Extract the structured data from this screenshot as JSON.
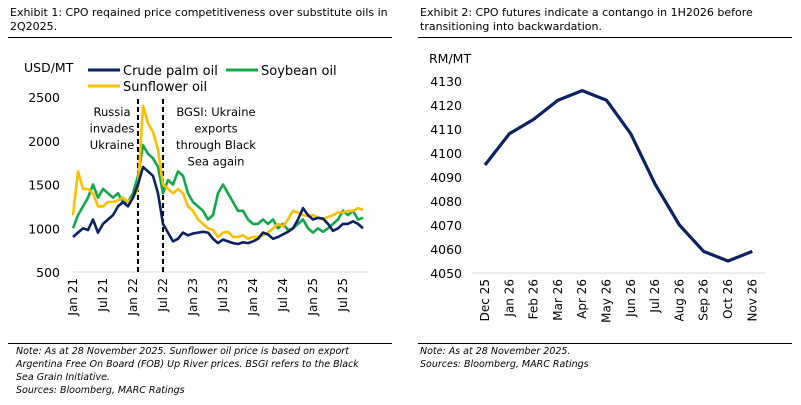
{
  "exhibit1": {
    "title": "Exhibit 1: CPO reqained price competitiveness over substitute oils in 2Q2025.",
    "notes": [
      "Note: As at 28 November 2025. Sunflower oil price is based on export",
      "Argentina Free On Board (FOB) Up River prices. BSGI refers to the Black",
      "Sea Grain Initiative.",
      "Sources: Bloomberg, MARC Ratings"
    ]
  },
  "exhibit2": {
    "title": "Exhibit 2: CPO futures indicate a contango in 1H2026 before transitioning into backwardation.",
    "notes": [
      "Note: As at 28 November 2025.",
      "Sources: Bloomberg, MARC Ratings"
    ]
  },
  "chart_data": [
    {
      "type": "line",
      "ylabel": "USD/MT",
      "ylim": [
        500,
        2500
      ],
      "yticks": [
        "500",
        "1000",
        "1500",
        "2000",
        "2500"
      ],
      "xticks": [
        "Jan 21",
        "Jul 21",
        "Jan 22",
        "Jul 22",
        "Jan 23",
        "Jul 23",
        "Jan 24",
        "Jul 24",
        "Jan 25",
        "Jul 25"
      ],
      "x_start": "Jan 2021",
      "x_end": "Nov 2025",
      "frequency": "monthly (approximate)",
      "grid": false,
      "legend": "top",
      "series": [
        {
          "name": "Crude palm oil",
          "color": "#0b2161",
          "values": [
            900,
            950,
            1000,
            980,
            1100,
            950,
            1050,
            1100,
            1150,
            1250,
            1300,
            1250,
            1350,
            1500,
            1700,
            1650,
            1600,
            1400,
            1050,
            950,
            850,
            880,
            950,
            920,
            940,
            950,
            960,
            950,
            880,
            830,
            870,
            850,
            830,
            820,
            840,
            830,
            850,
            880,
            950,
            930,
            880,
            900,
            930,
            960,
            1000,
            1100,
            1230,
            1150,
            1100,
            1120,
            1110,
            1050,
            970,
            1000,
            1050,
            1050,
            1080,
            1050,
            1000
          ]
        },
        {
          "name": "Soybean oil",
          "color": "#12a84a",
          "values": [
            1000,
            1150,
            1250,
            1350,
            1500,
            1350,
            1450,
            1400,
            1350,
            1400,
            1300,
            1300,
            1400,
            1600,
            1950,
            1850,
            1800,
            1700,
            1400,
            1550,
            1500,
            1650,
            1600,
            1400,
            1300,
            1250,
            1200,
            1100,
            1150,
            1400,
            1500,
            1400,
            1300,
            1200,
            1200,
            1100,
            1050,
            1050,
            1100,
            1050,
            1100,
            1000,
            1050,
            980,
            1000,
            1050,
            1100,
            1000,
            950,
            1000,
            960,
            1000,
            1050,
            1100,
            1200,
            1150,
            1200,
            1100,
            1120
          ]
        },
        {
          "name": "Sunflower oil",
          "color": "#ffbe00",
          "values": [
            1150,
            1650,
            1450,
            1450,
            1400,
            1250,
            1250,
            1300,
            1300,
            1320,
            1350,
            1300,
            1350,
            1450,
            2400,
            2200,
            2100,
            1900,
            1500,
            1450,
            1400,
            1450,
            1400,
            1250,
            1200,
            1100,
            1050,
            1000,
            980,
            900,
            950,
            960,
            900,
            900,
            920,
            880,
            900,
            900,
            920,
            950,
            1000,
            1050,
            1020,
            1100,
            1200,
            1180,
            1150,
            1140,
            1150,
            1120,
            1100,
            1130,
            1150,
            1180,
            1180,
            1200,
            1200,
            1230,
            1210
          ]
        }
      ],
      "annotations": [
        {
          "text": [
            "Russia",
            "invades",
            "Ukraine"
          ],
          "at": "Feb 22"
        },
        {
          "text": [
            "BGSI: Ukraine",
            "exports",
            "through Black",
            "Sea again"
          ],
          "at": "Jul 22"
        }
      ]
    },
    {
      "type": "line",
      "ylabel": "RM/MT",
      "ylim": [
        4050,
        4130
      ],
      "yticks": [
        "4050",
        "4060",
        "4070",
        "4080",
        "4090",
        "4100",
        "4110",
        "4120",
        "4130"
      ],
      "categories": [
        "Dec 25",
        "Jan 26",
        "Feb 26",
        "Mar 26",
        "Apr 26",
        "May 26",
        "Jun 26",
        "Jul 26",
        "Aug 26",
        "Sep 26",
        "Oct 26",
        "Nov 26"
      ],
      "grid": false,
      "series": [
        {
          "color": "#0b2161",
          "values": [
            4095,
            4108,
            4114,
            4122,
            4126,
            4122,
            4108,
            4087,
            4070,
            4059,
            4055,
            4059
          ]
        }
      ]
    }
  ]
}
